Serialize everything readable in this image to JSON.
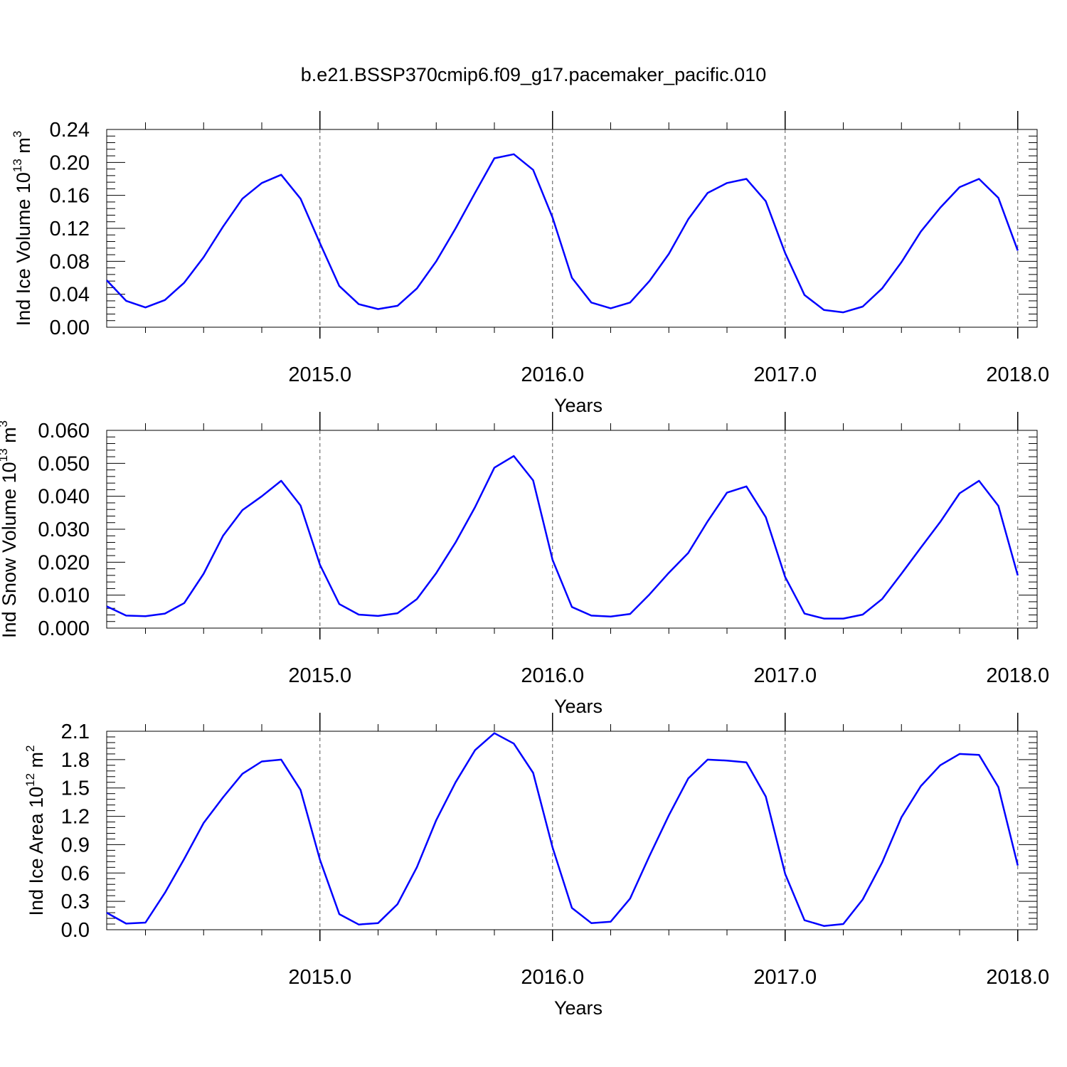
{
  "title": "b.e21.BSSP370cmip6.f09_g17.pacemaker_pacific.010",
  "line_color": "#0000ff",
  "chart_data": [
    {
      "type": "line",
      "ylabel_main": "Ind Ice Volume 10",
      "ylabel_exp": "13",
      "ylabel_unit": "m",
      "ylabel_unit_exp": "3",
      "xlabel": "Years",
      "xlim": [
        2014.0833,
        2018.0833
      ],
      "ylim": [
        0,
        0.24
      ],
      "xticks": [
        2015.0,
        2016.0,
        2017.0,
        2018.0
      ],
      "xtick_labels": [
        "2015.0",
        "2016.0",
        "2017.0",
        "2018.0"
      ],
      "yticks": [
        0,
        0.04,
        0.08,
        0.12,
        0.16,
        0.2,
        0.24
      ],
      "ytick_labels": [
        "0.00",
        "0.04",
        "0.08",
        "0.12",
        "0.16",
        "0.20",
        "0.24"
      ],
      "yminor_step": 0.008,
      "grid": "vertical dashed at year boundaries",
      "series": [
        {
          "x": [
            2014.0833,
            2014.1667,
            2014.25,
            2014.3333,
            2014.4167,
            2014.5,
            2014.5833,
            2014.6667,
            2014.75,
            2014.8333,
            2014.9167,
            2015.0,
            2015.0833,
            2015.1667,
            2015.25,
            2015.3333,
            2015.4167,
            2015.5,
            2015.5833,
            2015.6667,
            2015.75,
            2015.8333,
            2015.9167,
            2016.0,
            2016.0833,
            2016.1667,
            2016.25,
            2016.3333,
            2016.4167,
            2016.5,
            2016.5833,
            2016.6667,
            2016.75,
            2016.8333,
            2016.9167,
            2017.0,
            2017.0833,
            2017.1667,
            2017.25,
            2017.3333,
            2017.4167,
            2017.5,
            2017.5833,
            2017.6667,
            2017.75,
            2017.8333,
            2017.9167,
            2018.0
          ],
          "y": [
            0.057,
            0.032,
            0.024,
            0.033,
            0.054,
            0.085,
            0.122,
            0.156,
            0.175,
            0.185,
            0.156,
            0.102,
            0.05,
            0.028,
            0.022,
            0.026,
            0.047,
            0.08,
            0.12,
            0.163,
            0.205,
            0.21,
            0.191,
            0.133,
            0.06,
            0.03,
            0.023,
            0.03,
            0.056,
            0.089,
            0.131,
            0.163,
            0.175,
            0.18,
            0.153,
            0.09,
            0.039,
            0.021,
            0.018,
            0.025,
            0.047,
            0.079,
            0.116,
            0.145,
            0.17,
            0.18,
            0.157,
            0.093
          ]
        }
      ]
    },
    {
      "type": "line",
      "ylabel_main": "Ind Snow Volume 10",
      "ylabel_exp": "13",
      "ylabel_unit": "m",
      "ylabel_unit_exp": "3",
      "xlabel": "Years",
      "xlim": [
        2014.0833,
        2018.0833
      ],
      "ylim": [
        0,
        0.06
      ],
      "xticks": [
        2015.0,
        2016.0,
        2017.0,
        2018.0
      ],
      "xtick_labels": [
        "2015.0",
        "2016.0",
        "2017.0",
        "2018.0"
      ],
      "yticks": [
        0,
        0.01,
        0.02,
        0.03,
        0.04,
        0.05,
        0.06
      ],
      "ytick_labels": [
        "0.000",
        "0.010",
        "0.020",
        "0.030",
        "0.040",
        "0.050",
        "0.060"
      ],
      "yminor_step": 0.002,
      "grid": "vertical dashed at year boundaries",
      "series": [
        {
          "x": [
            2014.0833,
            2014.1667,
            2014.25,
            2014.3333,
            2014.4167,
            2014.5,
            2014.5833,
            2014.6667,
            2014.75,
            2014.8333,
            2014.9167,
            2015.0,
            2015.0833,
            2015.1667,
            2015.25,
            2015.3333,
            2015.4167,
            2015.5,
            2015.5833,
            2015.6667,
            2015.75,
            2015.8333,
            2015.9167,
            2016.0,
            2016.0833,
            2016.1667,
            2016.25,
            2016.3333,
            2016.4167,
            2016.5,
            2016.5833,
            2016.6667,
            2016.75,
            2016.8333,
            2016.9167,
            2017.0,
            2017.0833,
            2017.1667,
            2017.25,
            2017.3333,
            2017.4167,
            2017.5,
            2017.5833,
            2017.6667,
            2017.75,
            2017.8333,
            2017.9167,
            2018.0
          ],
          "y": [
            0.0066,
            0.0038,
            0.0036,
            0.0044,
            0.0076,
            0.0165,
            0.028,
            0.0358,
            0.04,
            0.0447,
            0.0372,
            0.0192,
            0.0073,
            0.0041,
            0.0037,
            0.0045,
            0.0088,
            0.0167,
            0.026,
            0.0367,
            0.0487,
            0.0522,
            0.0448,
            0.0207,
            0.0064,
            0.0038,
            0.0035,
            0.0043,
            0.0102,
            0.0168,
            0.0228,
            0.0324,
            0.0411,
            0.043,
            0.0337,
            0.0155,
            0.0044,
            0.0029,
            0.0029,
            0.0041,
            0.0088,
            0.0165,
            0.0244,
            0.0322,
            0.0409,
            0.0447,
            0.0371,
            0.016
          ]
        }
      ]
    },
    {
      "type": "line",
      "ylabel_main": "Ind Ice Area 10",
      "ylabel_exp": "12",
      "ylabel_unit": "m",
      "ylabel_unit_exp": "2",
      "xlabel": "Years",
      "xlim": [
        2014.0833,
        2018.0833
      ],
      "ylim": [
        0,
        2.1
      ],
      "xticks": [
        2015.0,
        2016.0,
        2017.0,
        2018.0
      ],
      "xtick_labels": [
        "2015.0",
        "2016.0",
        "2017.0",
        "2018.0"
      ],
      "yticks": [
        0,
        0.3,
        0.6,
        0.9,
        1.2,
        1.5,
        1.8,
        2.1
      ],
      "ytick_labels": [
        "0.0",
        "0.3",
        "0.6",
        "0.9",
        "1.2",
        "1.5",
        "1.8",
        "2.1"
      ],
      "yminor_step": 0.06,
      "grid": "vertical dashed at year boundaries",
      "series": [
        {
          "x": [
            2014.0833,
            2014.1667,
            2014.25,
            2014.3333,
            2014.4167,
            2014.5,
            2014.5833,
            2014.6667,
            2014.75,
            2014.8333,
            2014.9167,
            2015.0,
            2015.0833,
            2015.1667,
            2015.25,
            2015.3333,
            2015.4167,
            2015.5,
            2015.5833,
            2015.6667,
            2015.75,
            2015.8333,
            2015.9167,
            2016.0,
            2016.0833,
            2016.1667,
            2016.25,
            2016.3333,
            2016.4167,
            2016.5,
            2016.5833,
            2016.6667,
            2016.75,
            2016.8333,
            2016.9167,
            2017.0,
            2017.0833,
            2017.1667,
            2017.25,
            2017.3333,
            2017.4167,
            2017.5,
            2017.5833,
            2017.6667,
            2017.75,
            2017.8333,
            2017.9167,
            2018.0
          ],
          "y": [
            0.18,
            0.065,
            0.075,
            0.39,
            0.75,
            1.13,
            1.4,
            1.65,
            1.78,
            1.8,
            1.48,
            0.74,
            0.165,
            0.055,
            0.07,
            0.27,
            0.66,
            1.16,
            1.56,
            1.9,
            2.08,
            1.97,
            1.66,
            0.87,
            0.23,
            0.07,
            0.085,
            0.33,
            0.78,
            1.21,
            1.6,
            1.8,
            1.79,
            1.77,
            1.41,
            0.59,
            0.1,
            0.04,
            0.06,
            0.32,
            0.71,
            1.19,
            1.52,
            1.74,
            1.86,
            1.85,
            1.51,
            0.68
          ]
        }
      ]
    }
  ]
}
